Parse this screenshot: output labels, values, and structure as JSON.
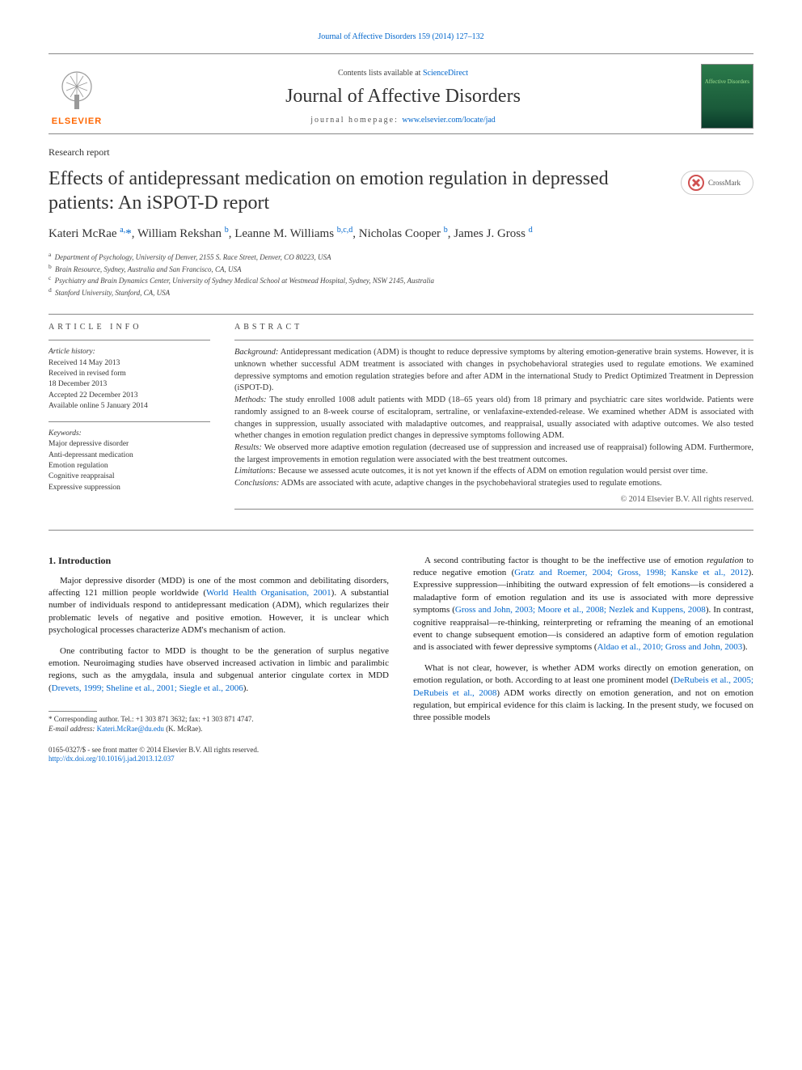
{
  "top_link": "Journal of Affective Disorders 159 (2014) 127–132",
  "header": {
    "contents_prefix": "Contents lists available at ",
    "contents_link": "ScienceDirect",
    "journal_name": "Journal of Affective Disorders",
    "homepage_label": "journal homepage: ",
    "homepage_url": "www.elsevier.com/locate/jad",
    "elsevier_label": "ELSEVIER",
    "cover_text": "Affective\nDisorders"
  },
  "section_label": "Research report",
  "title": "Effects of antidepressant medication on emotion regulation in depressed patients: An iSPOT-D report",
  "crossmark": "CrossMark",
  "authors_html": "Kateri McRae <sup>a,</sup><span class='star'>*</span>, William Rekshan <sup>b</sup>, Leanne M. Williams <sup>b,c,d</sup>, Nicholas Cooper <sup>b</sup>, James J. Gross <sup>d</sup>",
  "affiliations": [
    {
      "sup": "a",
      "text": "Department of Psychology, University of Denver, 2155 S. Race Street, Denver, CO 80223, USA"
    },
    {
      "sup": "b",
      "text": "Brain Resource, Sydney, Australia and San Francisco, CA, USA"
    },
    {
      "sup": "c",
      "text": "Psychiatry and Brain Dynamics Center, University of Sydney Medical School at Westmead Hospital, Sydney, NSW 2145, Australia"
    },
    {
      "sup": "d",
      "text": "Stanford University, Stanford, CA, USA"
    }
  ],
  "article_info": {
    "heading": "ARTICLE INFO",
    "history_label": "Article history:",
    "history": [
      "Received 14 May 2013",
      "Received in revised form",
      "18 December 2013",
      "Accepted 22 December 2013",
      "Available online 5 January 2014"
    ],
    "keywords_label": "Keywords:",
    "keywords": [
      "Major depressive disorder",
      "Anti-depressant medication",
      "Emotion regulation",
      "Cognitive reappraisal",
      "Expressive suppression"
    ]
  },
  "abstract": {
    "heading": "ABSTRACT",
    "parts": [
      {
        "label": "Background:",
        "text": " Antidepressant medication (ADM) is thought to reduce depressive symptoms by altering emotion-generative brain systems. However, it is unknown whether successful ADM treatment is associated with changes in psychobehavioral strategies used to regulate emotions. We examined depressive symptoms and emotion regulation strategies before and after ADM in the international Study to Predict Optimized Treatment in Depression (iSPOT-D)."
      },
      {
        "label": "Methods:",
        "text": " The study enrolled 1008 adult patients with MDD (18–65 years old) from 18 primary and psychiatric care sites worldwide. Patients were randomly assigned to an 8-week course of escitalopram, sertraline, or venlafaxine-extended-release. We examined whether ADM is associated with changes in suppression, usually associated with maladaptive outcomes, and reappraisal, usually associated with adaptive outcomes. We also tested whether changes in emotion regulation predict changes in depressive symptoms following ADM."
      },
      {
        "label": "Results:",
        "text": " We observed more adaptive emotion regulation (decreased use of suppression and increased use of reappraisal) following ADM. Furthermore, the largest improvements in emotion regulation were associated with the best treatment outcomes."
      },
      {
        "label": "Limitations:",
        "text": " Because we assessed acute outcomes, it is not yet known if the effects of ADM on emotion regulation would persist over time."
      },
      {
        "label": "Conclusions:",
        "text": " ADMs are associated with acute, adaptive changes in the psychobehavioral strategies used to regulate emotions."
      }
    ],
    "copyright": "© 2014 Elsevier B.V. All rights reserved."
  },
  "body": {
    "left": {
      "heading": "1.  Introduction",
      "paras": [
        "Major depressive disorder (MDD) is one of the most common and debilitating disorders, affecting 121 million people worldwide (<span class='ref-link'>World Health Organisation, 2001</span>). A substantial number of individuals respond to antidepressant medication (ADM), which regularizes their problematic levels of negative and positive emotion. However, it is unclear which psychological processes characterize ADM's mechanism of action.",
        "One contributing factor to MDD is thought to be the generation of surplus negative emotion. Neuroimaging studies have observed increased activation in limbic and paralimbic regions, such as the amygdala, insula and subgenual anterior cingulate cortex in MDD (<span class='ref-link'>Drevets, 1999; Sheline et al., 2001; Siegle et al., 2006</span>)."
      ]
    },
    "right": {
      "paras": [
        "A second contributing factor is thought to be the ineffective use of emotion <i>regulation</i> to reduce negative emotion (<span class='ref-link'>Gratz and Roemer, 2004; Gross, 1998; Kanske et al., 2012</span>). Expressive suppression—inhibiting the outward expression of felt emotions—is considered a maladaptive form of emotion regulation and its use is associated with more depressive symptoms (<span class='ref-link'>Gross and John, 2003; Moore et al., 2008; Nezlek and Kuppens, 2008</span>). In contrast, cognitive reappraisal—re-thinking, reinterpreting or reframing the meaning of an emotional event to change subsequent emotion—is considered an adaptive form of emotion regulation and is associated with fewer depressive symptoms (<span class='ref-link'>Aldao et al., 2010; Gross and John, 2003</span>).",
        "What is not clear, however, is whether ADM works directly on emotion generation, on emotion regulation, or both. According to at least one prominent model (<span class='ref-link'>DeRubeis et al., 2005; DeRubeis et al., 2008</span>) ADM works directly on emotion generation, and not on emotion regulation, but empirical evidence for this claim is lacking. In the present study, we focused on three possible models"
      ]
    }
  },
  "footnote": {
    "corresponding": "* Corresponding author. Tel.: +1 303 871 3632; fax: +1 303 871 4747.",
    "email_label": "E-mail address: ",
    "email": "Kateri.McRae@du.edu",
    "email_suffix": " (K. McRae)."
  },
  "bottom": {
    "issn": "0165-0327/$ - see front matter © 2014 Elsevier B.V. All rights reserved.",
    "doi": "http://dx.doi.org/10.1016/j.jad.2013.12.037"
  },
  "style": {
    "link_color": "#0066cc",
    "text_color": "#1a1a1a",
    "elsevier_orange": "#ff6600",
    "cover_green_top": "#2a7a4a",
    "cover_green_bottom": "#0a3a2a",
    "title_fontsize": 24,
    "body_fontsize": 11,
    "abstract_fontsize": 10.5
  }
}
